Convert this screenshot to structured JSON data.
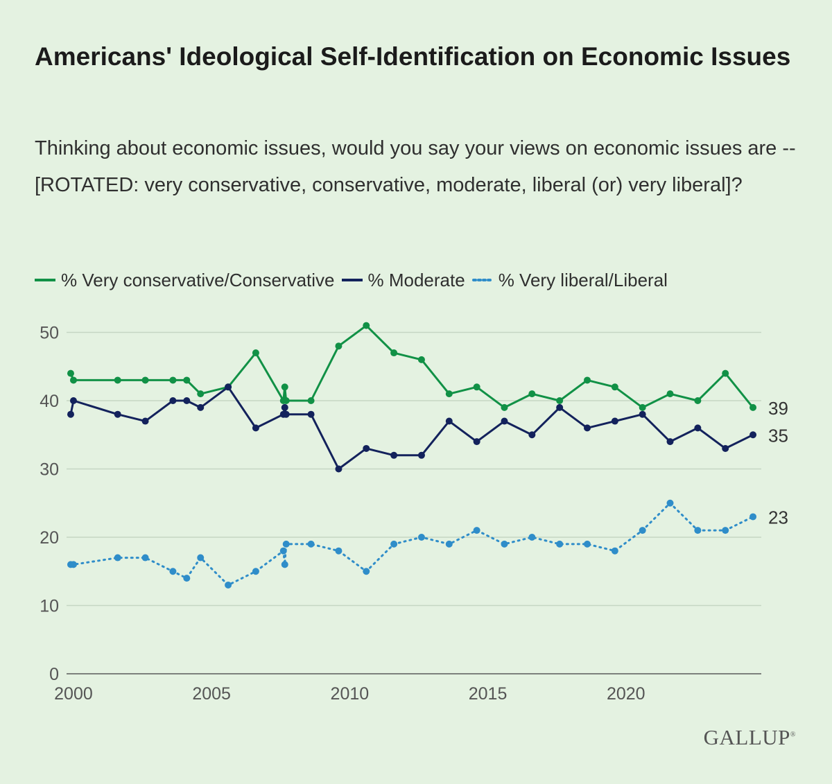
{
  "title": "Americans' Ideological Self-Identification on Economic Issues",
  "subtitle": "Thinking about economic issues, would you say your views on economic issues are -- [ROTATED: very conservative, conservative, moderate, liberal (or) very liberal]?",
  "brand": "GALLUP",
  "chart_data": {
    "type": "line",
    "title": "Americans' Ideological Self-Identification on Economic Issues",
    "xlabel": "",
    "ylabel": "",
    "xlim": [
      1999.8,
      2024.9
    ],
    "ylim": [
      0,
      52
    ],
    "x_ticks": [
      2000,
      2005,
      2010,
      2015,
      2020
    ],
    "y_ticks": [
      0,
      10,
      20,
      30,
      40,
      50
    ],
    "grid": "horizontal",
    "legend": "top",
    "series": [
      {
        "name": "% Very conservative/Conservative",
        "color": "#119146",
        "style": "solid",
        "end_label": "39",
        "points": [
          [
            1999.9,
            44
          ],
          [
            2000.0,
            43
          ],
          [
            2001.6,
            43
          ],
          [
            2002.6,
            43
          ],
          [
            2003.6,
            43
          ],
          [
            2004.1,
            43
          ],
          [
            2004.6,
            41
          ],
          [
            2005.6,
            42
          ],
          [
            2006.6,
            47
          ],
          [
            2007.6,
            40
          ],
          [
            2007.65,
            42
          ],
          [
            2007.7,
            40
          ],
          [
            2008.6,
            40
          ],
          [
            2009.6,
            48
          ],
          [
            2010.6,
            51
          ],
          [
            2011.6,
            47
          ],
          [
            2012.6,
            46
          ],
          [
            2013.6,
            41
          ],
          [
            2014.6,
            42
          ],
          [
            2015.6,
            39
          ],
          [
            2016.6,
            41
          ],
          [
            2017.6,
            40
          ],
          [
            2018.6,
            43
          ],
          [
            2019.6,
            42
          ],
          [
            2020.6,
            39
          ],
          [
            2021.6,
            41
          ],
          [
            2022.6,
            40
          ],
          [
            2023.6,
            44
          ],
          [
            2024.6,
            39
          ]
        ]
      },
      {
        "name": "% Moderate",
        "color": "#13225c",
        "style": "solid",
        "end_label": "35",
        "points": [
          [
            1999.9,
            38
          ],
          [
            2000.0,
            40
          ],
          [
            2001.6,
            38
          ],
          [
            2002.6,
            37
          ],
          [
            2003.6,
            40
          ],
          [
            2004.1,
            40
          ],
          [
            2004.6,
            39
          ],
          [
            2005.6,
            42
          ],
          [
            2006.6,
            36
          ],
          [
            2007.6,
            38
          ],
          [
            2007.65,
            39
          ],
          [
            2007.7,
            38
          ],
          [
            2008.6,
            38
          ],
          [
            2009.6,
            30
          ],
          [
            2010.6,
            33
          ],
          [
            2011.6,
            32
          ],
          [
            2012.6,
            32
          ],
          [
            2013.6,
            37
          ],
          [
            2014.6,
            34
          ],
          [
            2015.6,
            37
          ],
          [
            2016.6,
            35
          ],
          [
            2017.6,
            39
          ],
          [
            2018.6,
            36
          ],
          [
            2019.6,
            37
          ],
          [
            2020.6,
            38
          ],
          [
            2021.6,
            34
          ],
          [
            2022.6,
            36
          ],
          [
            2023.6,
            33
          ],
          [
            2024.6,
            35
          ]
        ]
      },
      {
        "name": "% Very liberal/Liberal",
        "color": "#2f8dc9",
        "style": "dotted",
        "end_label": "23",
        "points": [
          [
            1999.9,
            16
          ],
          [
            2000.0,
            16
          ],
          [
            2001.6,
            17
          ],
          [
            2002.6,
            17
          ],
          [
            2003.6,
            15
          ],
          [
            2004.1,
            14
          ],
          [
            2004.6,
            17
          ],
          [
            2005.6,
            13
          ],
          [
            2006.6,
            15
          ],
          [
            2007.6,
            18
          ],
          [
            2007.65,
            16
          ],
          [
            2007.7,
            19
          ],
          [
            2008.6,
            19
          ],
          [
            2009.6,
            18
          ],
          [
            2010.6,
            15
          ],
          [
            2011.6,
            19
          ],
          [
            2012.6,
            20
          ],
          [
            2013.6,
            19
          ],
          [
            2014.6,
            21
          ],
          [
            2015.6,
            19
          ],
          [
            2016.6,
            20
          ],
          [
            2017.6,
            19
          ],
          [
            2018.6,
            19
          ],
          [
            2019.6,
            18
          ],
          [
            2020.6,
            21
          ],
          [
            2021.6,
            25
          ],
          [
            2022.6,
            21
          ],
          [
            2023.6,
            21
          ],
          [
            2024.6,
            23
          ]
        ]
      }
    ]
  }
}
